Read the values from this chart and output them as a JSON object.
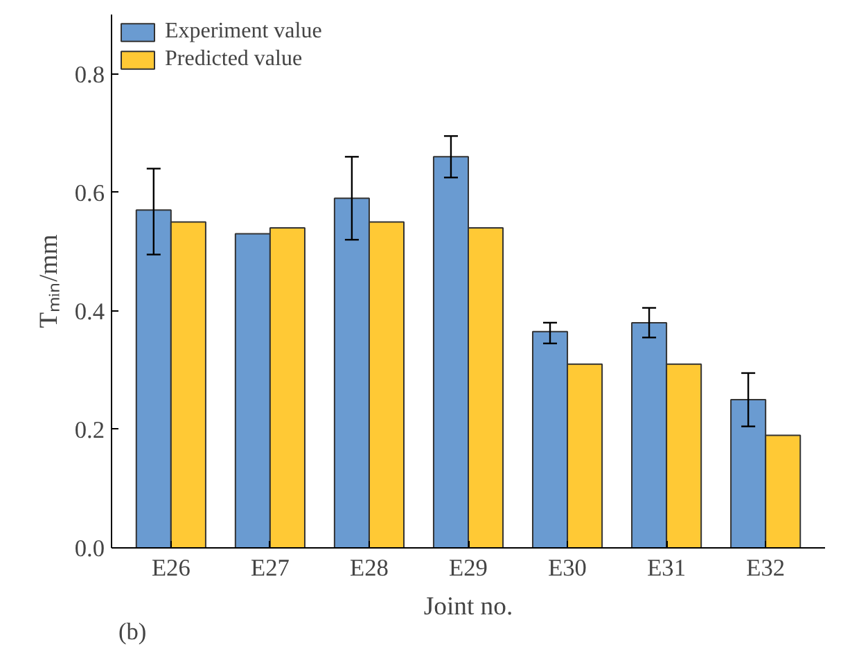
{
  "chart_data": {
    "type": "bar",
    "xlabel": "Joint no.",
    "ylabel": "Tₘᵢₙ/mm",
    "categories": [
      "E26",
      "E27",
      "E28",
      "E29",
      "E30",
      "E31",
      "E32"
    ],
    "series": [
      {
        "name": "Experiment value",
        "color": "#6a9bd1",
        "values": [
          0.57,
          0.53,
          0.59,
          0.66,
          0.365,
          0.38,
          0.25
        ],
        "errors": [
          [
            0.495,
            0.64
          ],
          null,
          [
            0.52,
            0.66
          ],
          [
            0.625,
            0.695
          ],
          [
            0.345,
            0.38
          ],
          [
            0.355,
            0.405
          ],
          [
            0.205,
            0.295
          ]
        ]
      },
      {
        "name": "Predicted value",
        "color": "#ffc935",
        "values": [
          0.55,
          0.54,
          0.55,
          0.54,
          0.31,
          0.31,
          0.19
        ]
      }
    ],
    "ylim": [
      0,
      0.9
    ],
    "yticks": [
      {
        "value": 0,
        "label": "0.0"
      },
      {
        "value": 0.2,
        "label": "0.2"
      },
      {
        "value": 0.4,
        "label": "0.4"
      },
      {
        "value": 0.6,
        "label": "0.6"
      },
      {
        "value": 0.8,
        "label": "0.8"
      }
    ],
    "grid": false,
    "legend": "top left",
    "annotations": [
      "(b)"
    ]
  }
}
